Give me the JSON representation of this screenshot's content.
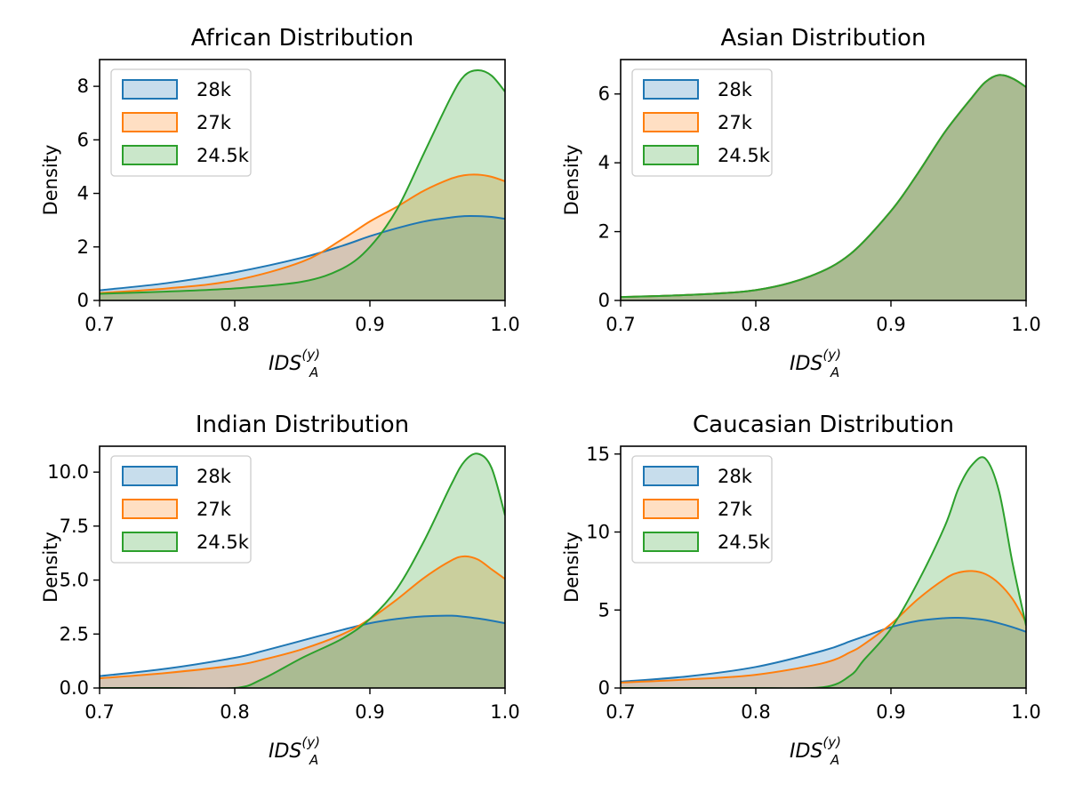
{
  "colors": {
    "series": [
      "#1f77b4",
      "#ff7f0e",
      "#2ca02c"
    ],
    "axis": "#000000",
    "legend_border": "#cccccc"
  },
  "chart_data": [
    {
      "type": "area",
      "title": "African Distribution",
      "xlabel": {
        "base": "IDS",
        "sub": "A",
        "sup": "(y)"
      },
      "ylabel": "Density",
      "xlim": [
        0.7,
        1.0
      ],
      "ylim": [
        0,
        9
      ],
      "xticks": [
        0.7,
        0.8,
        0.9,
        1.0
      ],
      "xtick_labels": [
        "0.7",
        "0.8",
        "0.9",
        "1.0"
      ],
      "yticks": [
        0,
        2,
        4,
        6,
        8
      ],
      "ytick_labels": [
        "0",
        "2",
        "4",
        "6",
        "8"
      ],
      "legend_position": "top-left",
      "x": [
        0.7,
        0.75,
        0.8,
        0.85,
        0.88,
        0.9,
        0.92,
        0.94,
        0.96,
        0.97,
        0.98,
        0.99,
        1.0
      ],
      "series": [
        {
          "name": "28k",
          "values": [
            0.38,
            0.65,
            1.05,
            1.6,
            2.05,
            2.4,
            2.7,
            2.95,
            3.1,
            3.15,
            3.15,
            3.12,
            3.05
          ]
        },
        {
          "name": "27k",
          "values": [
            0.28,
            0.45,
            0.75,
            1.45,
            2.3,
            2.95,
            3.5,
            4.1,
            4.55,
            4.68,
            4.7,
            4.62,
            4.45
          ]
        },
        {
          "name": "24.5k",
          "values": [
            0.25,
            0.33,
            0.45,
            0.7,
            1.2,
            2.0,
            3.4,
            5.5,
            7.6,
            8.4,
            8.6,
            8.4,
            7.8
          ]
        }
      ]
    },
    {
      "type": "area",
      "title": "Asian Distribution",
      "xlabel": {
        "base": "IDS",
        "sub": "A",
        "sup": "(y)"
      },
      "ylabel": "Density",
      "xlim": [
        0.7,
        1.0
      ],
      "ylim": [
        0,
        7
      ],
      "xticks": [
        0.7,
        0.8,
        0.9,
        1.0
      ],
      "xtick_labels": [
        "0.7",
        "0.8",
        "0.9",
        "1.0"
      ],
      "yticks": [
        0,
        2,
        4,
        6
      ],
      "ytick_labels": [
        "0",
        "2",
        "4",
        "6"
      ],
      "legend_position": "top-left",
      "x": [
        0.7,
        0.75,
        0.8,
        0.84,
        0.87,
        0.9,
        0.92,
        0.94,
        0.96,
        0.97,
        0.98,
        0.99,
        1.0
      ],
      "series": [
        {
          "name": "28k",
          "values": [
            0.1,
            0.16,
            0.3,
            0.7,
            1.35,
            2.6,
            3.7,
            4.9,
            5.9,
            6.35,
            6.55,
            6.45,
            6.2
          ]
        },
        {
          "name": "27k",
          "values": [
            0.1,
            0.16,
            0.3,
            0.7,
            1.35,
            2.6,
            3.7,
            4.9,
            5.9,
            6.35,
            6.55,
            6.45,
            6.2
          ]
        },
        {
          "name": "24.5k",
          "values": [
            0.1,
            0.16,
            0.3,
            0.7,
            1.35,
            2.6,
            3.7,
            4.9,
            5.9,
            6.35,
            6.55,
            6.45,
            6.2
          ]
        }
      ]
    },
    {
      "type": "area",
      "title": "Indian Distribution",
      "xlabel": {
        "base": "IDS",
        "sub": "A",
        "sup": "(y)"
      },
      "ylabel": "Density",
      "xlim": [
        0.7,
        1.0
      ],
      "ylim": [
        0,
        11.2
      ],
      "xticks": [
        0.7,
        0.8,
        0.9,
        1.0
      ],
      "xtick_labels": [
        "0.7",
        "0.8",
        "0.9",
        "1.0"
      ],
      "yticks": [
        0,
        2.5,
        5.0,
        7.5,
        10.0
      ],
      "ytick_labels": [
        "0.0",
        "2.5",
        "5.0",
        "7.5",
        "10.0"
      ],
      "legend_position": "top-left",
      "x": [
        0.7,
        0.75,
        0.8,
        0.82,
        0.85,
        0.88,
        0.9,
        0.92,
        0.94,
        0.96,
        0.97,
        0.98,
        0.99,
        1.0
      ],
      "series": [
        {
          "name": "28k",
          "values": [
            0.55,
            0.9,
            1.4,
            1.7,
            2.2,
            2.7,
            3.0,
            3.2,
            3.32,
            3.35,
            3.3,
            3.22,
            3.12,
            3.0
          ]
        },
        {
          "name": "27k",
          "values": [
            0.45,
            0.7,
            1.05,
            1.3,
            1.8,
            2.5,
            3.2,
            4.1,
            5.1,
            5.9,
            6.1,
            5.95,
            5.5,
            5.05
          ]
        },
        {
          "name": "24.5k",
          "values": [
            0.0,
            0.0,
            0.0,
            0.4,
            1.4,
            2.3,
            3.2,
            4.6,
            6.8,
            9.4,
            10.5,
            10.85,
            10.2,
            8.0
          ]
        }
      ]
    },
    {
      "type": "area",
      "title": "Caucasian Distribution",
      "xlabel": {
        "base": "IDS",
        "sub": "A",
        "sup": "(y)"
      },
      "ylabel": "Density",
      "xlim": [
        0.7,
        1.0
      ],
      "ylim": [
        0,
        15.5
      ],
      "xticks": [
        0.7,
        0.8,
        0.9,
        1.0
      ],
      "xtick_labels": [
        "0.7",
        "0.8",
        "0.9",
        "1.0"
      ],
      "yticks": [
        0,
        5,
        10,
        15
      ],
      "ytick_labels": [
        "0",
        "5",
        "10",
        "15"
      ],
      "legend_position": "top-left",
      "x": [
        0.7,
        0.75,
        0.8,
        0.85,
        0.87,
        0.88,
        0.9,
        0.92,
        0.94,
        0.95,
        0.96,
        0.97,
        0.98,
        0.99,
        1.0
      ],
      "series": [
        {
          "name": "28k",
          "values": [
            0.4,
            0.75,
            1.35,
            2.4,
            3.0,
            3.3,
            3.9,
            4.3,
            4.48,
            4.5,
            4.45,
            4.35,
            4.15,
            3.9,
            3.6
          ]
        },
        {
          "name": "27k",
          "values": [
            0.35,
            0.55,
            0.85,
            1.6,
            2.3,
            2.8,
            4.1,
            5.7,
            7.0,
            7.4,
            7.5,
            7.3,
            6.7,
            5.7,
            4.2
          ]
        },
        {
          "name": "24.5k",
          "values": [
            0.0,
            0.0,
            0.0,
            0.05,
            0.8,
            1.8,
            3.8,
            6.8,
            10.4,
            12.8,
            14.3,
            14.7,
            12.6,
            8.0,
            4.0
          ]
        }
      ]
    }
  ]
}
